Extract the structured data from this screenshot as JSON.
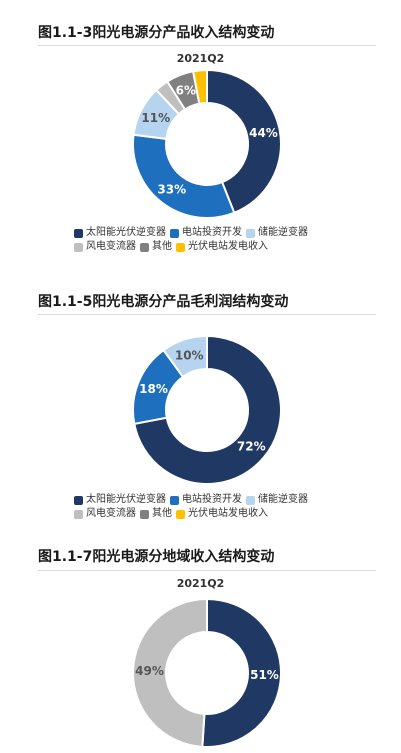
{
  "charts": [
    {
      "title": "图1.1-3阳光电源分产品收入结构变动",
      "subtitle": "2021Q2",
      "legend": [
        {
          "label": "太阳能光伏逆变器",
          "color": "#1f3864"
        },
        {
          "label": "电站投资开发",
          "color": "#1f6fbf"
        },
        {
          "label": "储能逆变器",
          "color": "#b4d4ef"
        },
        {
          "label": "风电变流器",
          "color": "#bfbfbf"
        },
        {
          "label": "其他",
          "color": "#808080"
        },
        {
          "label": "光伏电站发电收入",
          "color": "#ffc000"
        }
      ]
    },
    {
      "title": "图1.1-5阳光电源分产品毛利润结构变动",
      "subtitle": "",
      "legend": [
        {
          "label": "太阳能光伏逆变器",
          "color": "#1f3864"
        },
        {
          "label": "电站投资开发",
          "color": "#1f6fbf"
        },
        {
          "label": "储能逆变器",
          "color": "#b4d4ef"
        },
        {
          "label": "风电变流器",
          "color": "#bfbfbf"
        },
        {
          "label": "其他",
          "color": "#808080"
        },
        {
          "label": "光伏电站发电收入",
          "color": "#ffc000"
        }
      ]
    },
    {
      "title": "图1.1-7阳光电源分地域收入结构变动",
      "subtitle": "2021Q2",
      "legend": []
    }
  ],
  "chart_data": [
    {
      "type": "pie",
      "variant": "donut",
      "title": "图1.1-3阳光电源分产品收入结构变动",
      "subtitle": "2021Q2",
      "categories": [
        "太阳能光伏逆变器",
        "电站投资开发",
        "储能逆变器",
        "风电变流器",
        "其他",
        "光伏电站发电收入"
      ],
      "values": [
        44,
        33,
        11,
        3,
        6,
        3
      ],
      "labels": [
        "44%",
        "33%",
        "11%",
        "",
        "6%",
        ""
      ],
      "colors": [
        "#1f3864",
        "#1f6fbf",
        "#b4d4ef",
        "#bfbfbf",
        "#808080",
        "#ffc000"
      ],
      "legend_position": "bottom"
    },
    {
      "type": "pie",
      "variant": "donut",
      "title": "图1.1-5阳光电源分产品毛利润结构变动",
      "categories": [
        "太阳能光伏逆变器",
        "电站投资开发",
        "储能逆变器",
        "风电变流器",
        "其他",
        "光伏电站发电收入"
      ],
      "values": [
        72,
        18,
        10,
        0,
        0,
        0
      ],
      "labels": [
        "72%",
        "18%",
        "10%",
        "",
        "",
        ""
      ],
      "colors": [
        "#1f3864",
        "#1f6fbf",
        "#b4d4ef",
        "#bfbfbf",
        "#808080",
        "#ffc000"
      ],
      "legend_position": "bottom"
    },
    {
      "type": "pie",
      "variant": "donut",
      "title": "图1.1-7阳光电源分地域收入结构变动",
      "subtitle": "2021Q2",
      "categories": [
        "",
        ""
      ],
      "values": [
        51,
        49
      ],
      "labels": [
        "51%",
        "49%"
      ],
      "colors": [
        "#1f3864",
        "#bfbfbf"
      ]
    }
  ]
}
